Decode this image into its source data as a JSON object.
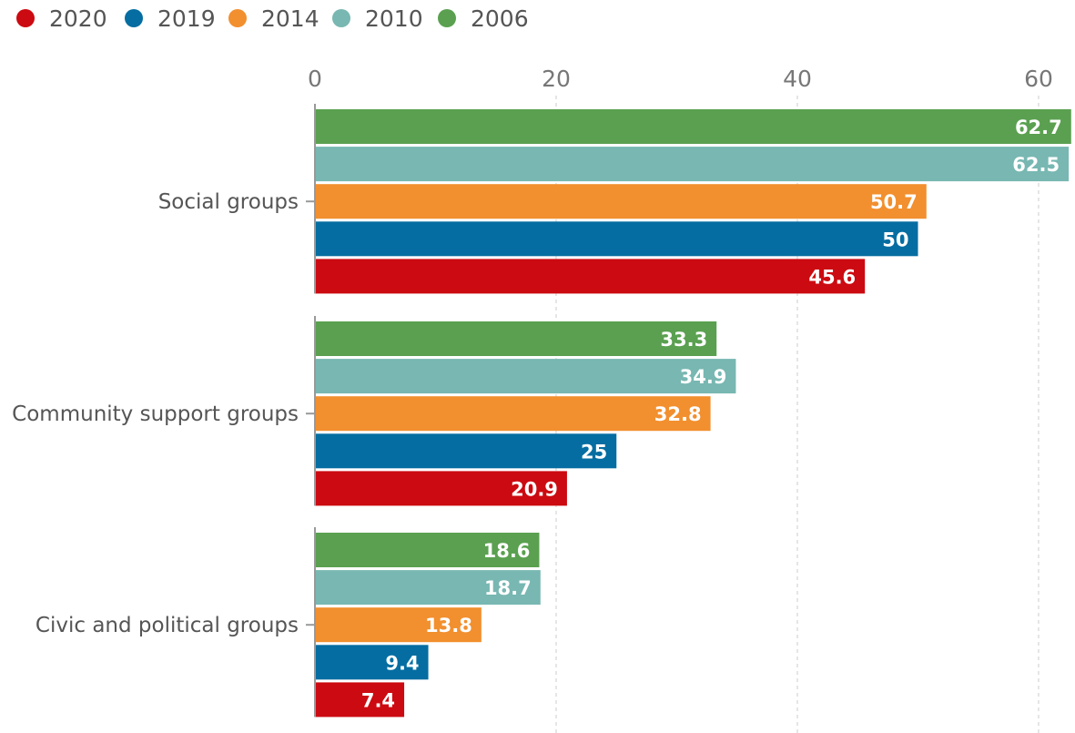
{
  "chart_data": {
    "type": "bar",
    "orientation": "horizontal",
    "title": "",
    "xlabel": "",
    "ylabel": "",
    "xlim": [
      0,
      62.7
    ],
    "x_ticks": [
      "0",
      "20",
      "40",
      "60"
    ],
    "grid": true,
    "legend_position": "top-left",
    "categories": [
      "Social groups",
      "Community support groups",
      "Civic and political groups"
    ],
    "series": [
      {
        "name": "2006",
        "color": "#5aa050",
        "values": [
          62.7,
          33.3,
          18.6
        ],
        "labels": [
          "62.7",
          "33.3",
          "18.6"
        ]
      },
      {
        "name": "2010",
        "color": "#78b7b2",
        "values": [
          62.5,
          34.9,
          18.7
        ],
        "labels": [
          "62.5",
          "34.9",
          "18.7"
        ]
      },
      {
        "name": "2014",
        "color": "#f28f2e",
        "values": [
          50.7,
          32.8,
          13.8
        ],
        "labels": [
          "50.7",
          "32.8",
          "13.8"
        ]
      },
      {
        "name": "2019",
        "color": "#056da1",
        "values": [
          50,
          25,
          9.4
        ],
        "labels": [
          "50",
          "25",
          "9.4"
        ]
      },
      {
        "name": "2020",
        "color": "#cc0a11",
        "values": [
          45.6,
          20.9,
          7.4
        ],
        "labels": [
          "45.6",
          "20.9",
          "7.4"
        ]
      }
    ],
    "legend_order": [
      "2020",
      "2019",
      "2014",
      "2010",
      "2006"
    ]
  }
}
